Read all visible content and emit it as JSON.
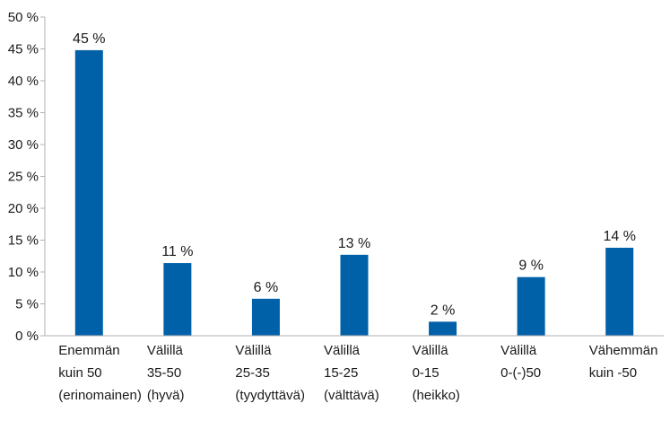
{
  "chart_data": {
    "type": "bar",
    "title": "",
    "xlabel": "",
    "ylabel": "",
    "ylim": [
      0,
      50
    ],
    "y_ticks": [
      "0 %",
      "5 %",
      "10 %",
      "15 %",
      "20 %",
      "25 %",
      "30 %",
      "35 %",
      "40 %",
      "45 %",
      "50 %"
    ],
    "y_tick_values": [
      0,
      5,
      10,
      15,
      20,
      25,
      30,
      35,
      40,
      45,
      50
    ],
    "categories": [
      [
        "Enemmän",
        "kuin 50",
        "(erinomainen)"
      ],
      [
        "Välillä",
        "35-50",
        "(hyvä)"
      ],
      [
        "Välillä",
        "25-35",
        "(tyydyttävä)"
      ],
      [
        "Välillä",
        "15-25",
        "(välttävä)"
      ],
      [
        "Välillä",
        "0-15",
        "(heikko)"
      ],
      [
        "Välillä",
        "0-(-)50"
      ],
      [
        "Vähemmän",
        "kuin -50"
      ]
    ],
    "values": [
      45,
      11,
      6,
      13,
      2,
      9,
      14
    ],
    "plotted_values": [
      44.8,
      11.4,
      5.8,
      12.7,
      2.2,
      9.2,
      13.8
    ],
    "data_labels": [
      "45 %",
      "11 %",
      "6 %",
      "13 %",
      "2 %",
      "9 %",
      "14 %"
    ],
    "bar_color": "#0060a8",
    "axis_color": "#b0b0b0",
    "grid": false,
    "legend": "none"
  }
}
